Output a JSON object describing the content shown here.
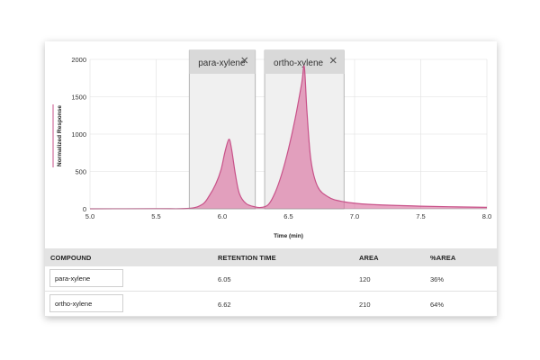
{
  "chart_data": {
    "type": "area",
    "xlabel": "Time (min)",
    "ylabel": "Normalized Response",
    "xlim": [
      5.0,
      8.0
    ],
    "ylim": [
      0,
      2000
    ],
    "x_ticks": [
      "5.0",
      "5.5",
      "6.0",
      "6.5",
      "7.0",
      "7.5",
      "8.0"
    ],
    "y_ticks": [
      "0",
      "500",
      "1000",
      "1500",
      "2000"
    ],
    "grid": true,
    "series": [
      {
        "values": [
          [
            5.0,
            0
          ],
          [
            5.5,
            2
          ],
          [
            5.75,
            6
          ],
          [
            5.85,
            60
          ],
          [
            5.9,
            170
          ],
          [
            5.95,
            330
          ],
          [
            5.99,
            520
          ],
          [
            6.02,
            760
          ],
          [
            6.05,
            930
          ],
          [
            6.07,
            800
          ],
          [
            6.1,
            450
          ],
          [
            6.13,
            200
          ],
          [
            6.18,
            70
          ],
          [
            6.25,
            25
          ],
          [
            6.3,
            20
          ],
          [
            6.35,
            60
          ],
          [
            6.4,
            220
          ],
          [
            6.45,
            470
          ],
          [
            6.5,
            800
          ],
          [
            6.55,
            1200
          ],
          [
            6.6,
            1680
          ],
          [
            6.62,
            1900
          ],
          [
            6.64,
            1300
          ],
          [
            6.67,
            650
          ],
          [
            6.72,
            300
          ],
          [
            6.8,
            160
          ],
          [
            6.9,
            100
          ],
          [
            7.1,
            60
          ],
          [
            7.5,
            35
          ],
          [
            8.0,
            20
          ]
        ]
      }
    ],
    "regions": [
      {
        "label": "para-xylene",
        "x_start": 5.75,
        "x_end": 6.25
      },
      {
        "label": "ortho-xylene",
        "x_start": 6.32,
        "x_end": 6.92
      }
    ],
    "colors": {
      "fill": "#d9699b",
      "stroke": "#c85289",
      "region": "#f0f0f0",
      "region_header": "#d9d9d9",
      "grid": "#e0e0e0"
    }
  },
  "table": {
    "headers": [
      "COMPOUND",
      "RETENTION TIME",
      "AREA",
      "%AREA"
    ],
    "rows": [
      {
        "compound": "para-xylene",
        "retention_time": "6.05",
        "area": "120",
        "pct_area": "36%"
      },
      {
        "compound": "ortho-xylene",
        "retention_time": "6.62",
        "area": "210",
        "pct_area": "64%"
      }
    ]
  }
}
